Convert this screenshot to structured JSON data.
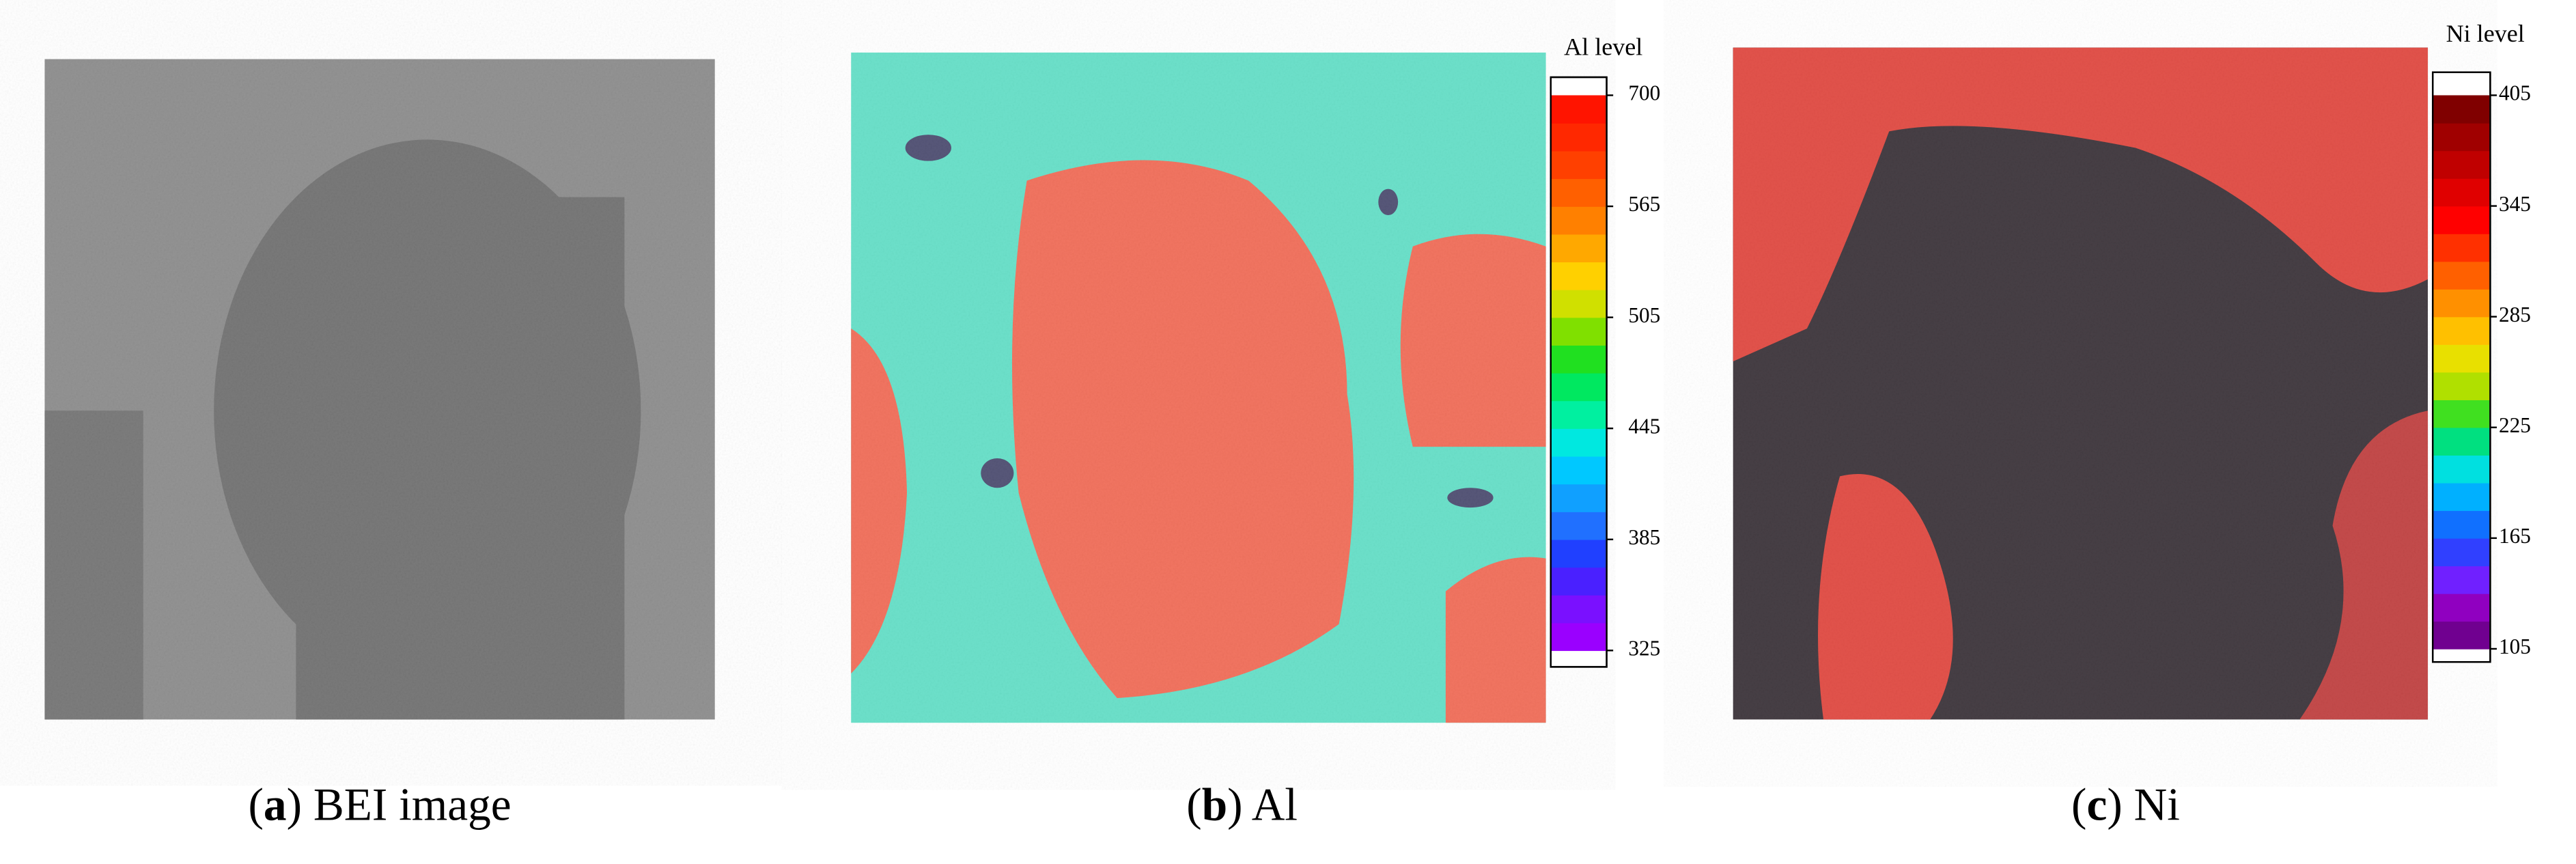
{
  "panels": [
    {
      "caption": [
        "(",
        "a",
        ") BEI image"
      ]
    },
    {
      "caption": [
        "(",
        "b",
        ") Al"
      ],
      "colorbar": {
        "title": "Al level",
        "ticks": [
          700,
          565,
          505,
          445,
          385,
          325
        ],
        "colors": [
          "#9a00ff",
          "#7a10ff",
          "#4a20ff",
          "#2040ff",
          "#2070ff",
          "#10a0ff",
          "#00c8ff",
          "#00e8e0",
          "#00f0a0",
          "#00e860",
          "#20e020",
          "#80e000",
          "#d0e000",
          "#ffd000",
          "#ffa800",
          "#ff8000",
          "#ff6000",
          "#ff4000",
          "#ff2800",
          "#ff1400"
        ]
      }
    },
    {
      "caption": [
        "(",
        "c",
        ") Ni"
      ],
      "colorbar": {
        "title": "Ni level",
        "ticks": [
          405,
          345,
          285,
          225,
          165,
          105
        ],
        "colors": [
          "#700090",
          "#9000c0",
          "#7020ff",
          "#3040ff",
          "#1070ff",
          "#00b0ff",
          "#00e0e0",
          "#00e080",
          "#40e020",
          "#b0e000",
          "#e8e000",
          "#ffc000",
          "#ff9000",
          "#ff6000",
          "#ff3000",
          "#ff0000",
          "#e00000",
          "#c00000",
          "#a00000",
          "#800000"
        ]
      }
    }
  ]
}
